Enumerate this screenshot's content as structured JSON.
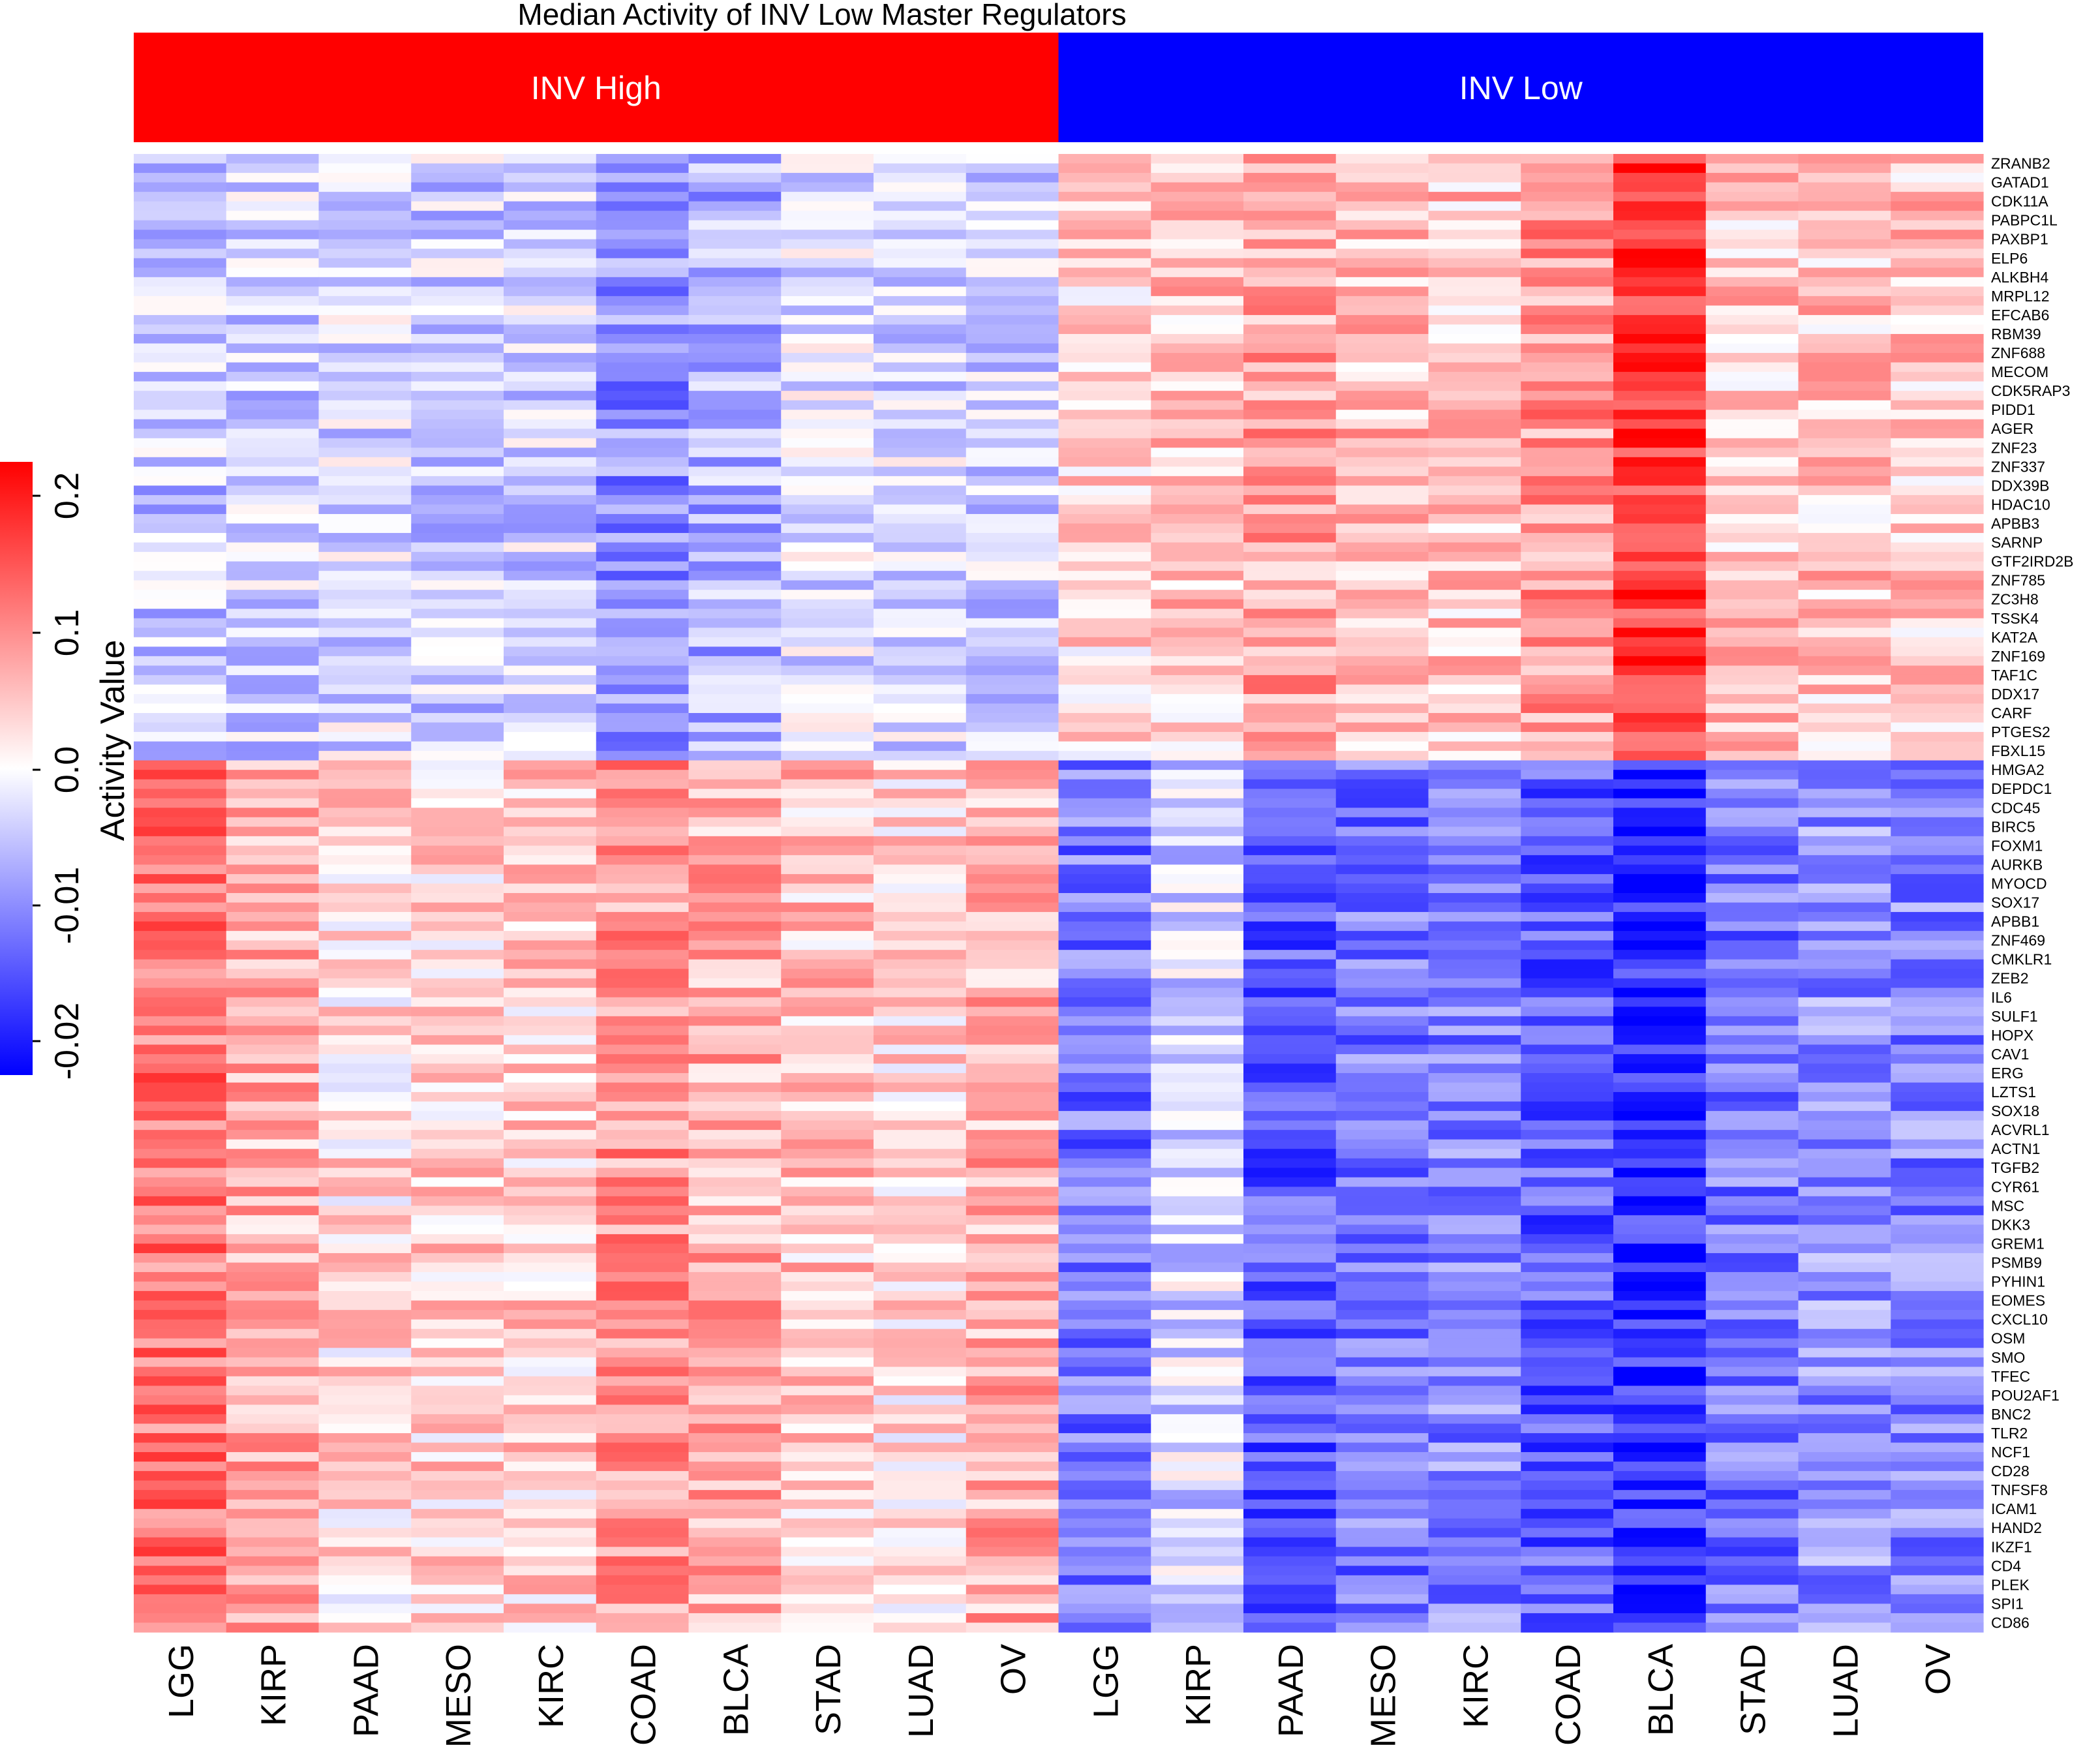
{
  "chart_data": {
    "type": "heatmap",
    "title": "Median Activity of INV Low Master Regulators",
    "column_groups": [
      {
        "label": "INV High",
        "color": "#ff0000"
      },
      {
        "label": "INV Low",
        "color": "#0000ff"
      }
    ],
    "columns": [
      "LGG",
      "KIRP",
      "PAAD",
      "MESO",
      "KIRC",
      "COAD",
      "BLCA",
      "STAD",
      "LUAD",
      "OV",
      "LGG",
      "KIRP",
      "PAAD",
      "MESO",
      "KIRC",
      "COAD",
      "BLCA",
      "STAD",
      "LUAD",
      "OV"
    ],
    "column_group_index": [
      0,
      0,
      0,
      0,
      0,
      0,
      0,
      0,
      0,
      0,
      1,
      1,
      1,
      1,
      1,
      1,
      1,
      1,
      1,
      1
    ],
    "row_labels": [
      "ZRANB2",
      "GATAD1",
      "CDK11A",
      "PABPC1L",
      "PAXBP1",
      "ELP6",
      "ALKBH4",
      "MRPL12",
      "EFCAB6",
      "RBM39",
      "ZNF688",
      "MECOM",
      "CDK5RAP3",
      "PIDD1",
      "AGER",
      "ZNF23",
      "ZNF337",
      "DDX39B",
      "HDAC10",
      "APBB3",
      "SARNP",
      "GTF2IRD2B",
      "ZNF785",
      "ZC3H8",
      "TSSK4",
      "KAT2A",
      "ZNF169",
      "TAF1C",
      "DDX17",
      "CARF",
      "PTGES2",
      "FBXL15",
      "HMGA2",
      "DEPDC1",
      "CDC45",
      "BIRC5",
      "FOXM1",
      "AURKB",
      "MYOCD",
      "SOX17",
      "APBB1",
      "ZNF469",
      "CMKLR1",
      "ZEB2",
      "IL6",
      "SULF1",
      "HOPX",
      "CAV1",
      "ERG",
      "LZTS1",
      "SOX18",
      "ACVRL1",
      "ACTN1",
      "TGFB2",
      "CYR61",
      "MSC",
      "DKK3",
      "GREM1",
      "PSMB9",
      "PYHIN1",
      "EOMES",
      "CXCL10",
      "OSM",
      "SMO",
      "TFEC",
      "POU2AF1",
      "BNC2",
      "TLR2",
      "NCF1",
      "CD28",
      "TNFSF8",
      "ICAM1",
      "HAND2",
      "IKZF1",
      "CD4",
      "PLEK",
      "SPI1",
      "CD86"
    ],
    "block_boundary_label": "HMGA2",
    "values_by_block": {
      "upper_block": {
        "inv_high": [
          -0.05,
          -0.04,
          -0.03,
          -0.04,
          -0.04,
          -0.1,
          -0.07,
          -0.03,
          -0.03,
          -0.04
        ],
        "inv_low": [
          0.04,
          0.05,
          0.08,
          0.06,
          0.05,
          0.09,
          0.17,
          0.05,
          0.05,
          0.05
        ]
      },
      "lower_block": {
        "inv_high": [
          0.12,
          0.07,
          0.03,
          0.04,
          0.04,
          0.09,
          0.07,
          0.05,
          0.03,
          0.07
        ],
        "inv_low": [
          -0.01,
          -0.003,
          -0.012,
          -0.01,
          -0.009,
          -0.012,
          -0.015,
          -0.01,
          -0.008,
          -0.009
        ]
      }
    },
    "colorbar": {
      "title": "Activity Value",
      "ticks": [
        0.2,
        0.1,
        0.0,
        -0.01,
        -0.02
      ],
      "tick_labels": [
        "0.2",
        "0.1",
        "0.0",
        "-0.01",
        "-0.02"
      ],
      "low_color": "#0000ff",
      "mid_color": "#ffffff",
      "high_color": "#ff0000"
    }
  }
}
